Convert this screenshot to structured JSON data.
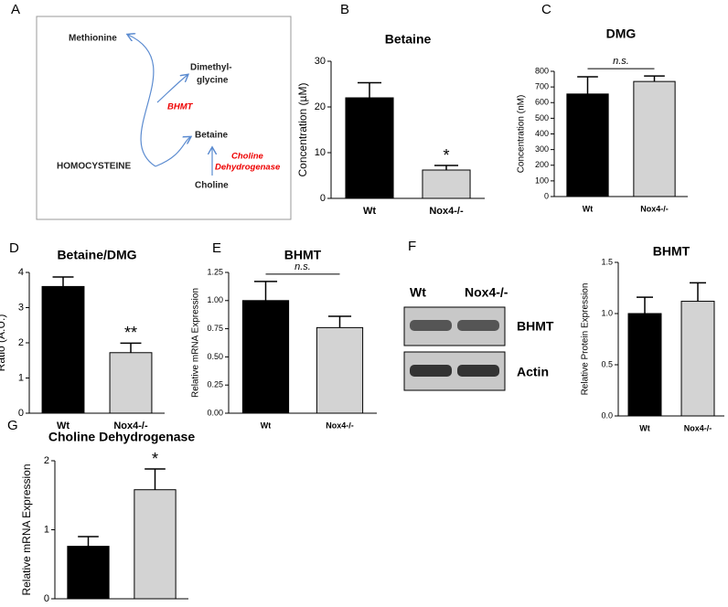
{
  "diagram": {
    "panel": "A",
    "methionine": "Methionine",
    "dmg_line1": "Dimethyl-",
    "dmg_line2": "glycine",
    "enzyme1": "BHMT",
    "betaine": "Betaine",
    "homocysteine": "HOMOCYSTEINE",
    "enzyme2_line1": "Choline",
    "enzyme2_line2": "Dehydrogenase",
    "choline": "Choline"
  },
  "blot": {
    "panel": "F",
    "lanes": [
      "Wt",
      "Nox4-/-"
    ],
    "bands": [
      "BHMT",
      "Actin"
    ]
  },
  "chart_data": [
    {
      "type": "bar",
      "panel": "B",
      "title": "Betaine",
      "y_label": "Concentration (µM)",
      "categories": [
        "Wt",
        "Nox4-/-"
      ],
      "series": [
        {
          "colors": [
            "#000000",
            "#d3d3d3"
          ],
          "values": [
            22,
            6.2
          ],
          "errors": [
            3.3,
            1.0
          ]
        }
      ],
      "annotation": "*",
      "ylim": [
        0,
        30
      ],
      "yticks": [
        0,
        10,
        20,
        30
      ]
    },
    {
      "type": "bar",
      "panel": "C",
      "title": "DMG",
      "y_label": "Concentration (nM)",
      "categories": [
        "Wt",
        "Nox4-/-"
      ],
      "series": [
        {
          "colors": [
            "#000000",
            "#d3d3d3"
          ],
          "values": [
            655,
            735
          ],
          "errors": [
            110,
            35
          ]
        }
      ],
      "annotation": "n.s.",
      "ylim": [
        0,
        800
      ],
      "yticks": [
        0,
        100,
        200,
        300,
        400,
        500,
        600,
        700,
        800
      ]
    },
    {
      "type": "bar",
      "panel": "D",
      "title": "Betaine/DMG",
      "y_label": "Ratio (A.U.)",
      "categories": [
        "Wt",
        "Nox4-/-"
      ],
      "series": [
        {
          "colors": [
            "#000000",
            "#d3d3d3"
          ],
          "values": [
            3.6,
            1.72
          ],
          "errors": [
            0.27,
            0.27
          ]
        }
      ],
      "annotation": "**",
      "ylim": [
        0,
        4
      ],
      "yticks": [
        0,
        1,
        2,
        3,
        4
      ]
    },
    {
      "type": "bar",
      "panel": "E",
      "title": "BHMT",
      "y_label": "Relative mRNA Expression",
      "categories": [
        "Wt",
        "Nox4-/-"
      ],
      "series": [
        {
          "colors": [
            "#000000",
            "#d3d3d3"
          ],
          "values": [
            1.0,
            0.76
          ],
          "errors": [
            0.17,
            0.1
          ]
        }
      ],
      "annotation": "n.s.",
      "ylim": [
        0,
        1.25
      ],
      "yticks": [
        {
          "value": 0,
          "label": "0.00"
        },
        {
          "value": 0.25,
          "label": "0.25"
        },
        {
          "value": 0.5,
          "label": "0.50"
        },
        {
          "value": 0.75,
          "label": "0.75"
        },
        {
          "value": 1,
          "label": "1.00"
        },
        {
          "value": 1.25,
          "label": "1.25"
        }
      ]
    },
    {
      "type": "bar",
      "title": "BHMT",
      "y_label": "Relative Protein Expression",
      "categories": [
        "Wt",
        "Nox4-/-"
      ],
      "series": [
        {
          "colors": [
            "#000000",
            "#d3d3d3"
          ],
          "values": [
            1.0,
            1.12
          ],
          "errors": [
            0.16,
            0.18
          ]
        }
      ],
      "ylim": [
        0,
        1.5
      ],
      "yticks": [
        {
          "value": 0,
          "label": "0.0"
        },
        {
          "value": 0.5,
          "label": "0.5"
        },
        {
          "value": 1,
          "label": "1.0"
        },
        {
          "value": 1.5,
          "label": "1.5"
        }
      ]
    },
    {
      "type": "bar",
      "panel": "G",
      "title": "Choline Dehydrogenase",
      "y_label": "Relative mRNA Expression",
      "categories": [
        "Wt",
        "Nox4-/-"
      ],
      "series": [
        {
          "colors": [
            "#000000",
            "#d3d3d3"
          ],
          "values": [
            0.76,
            1.58
          ],
          "errors": [
            0.14,
            0.3
          ]
        }
      ],
      "annotation": "*",
      "ylim": [
        0,
        2
      ],
      "yticks": [
        0,
        1,
        2
      ]
    }
  ]
}
